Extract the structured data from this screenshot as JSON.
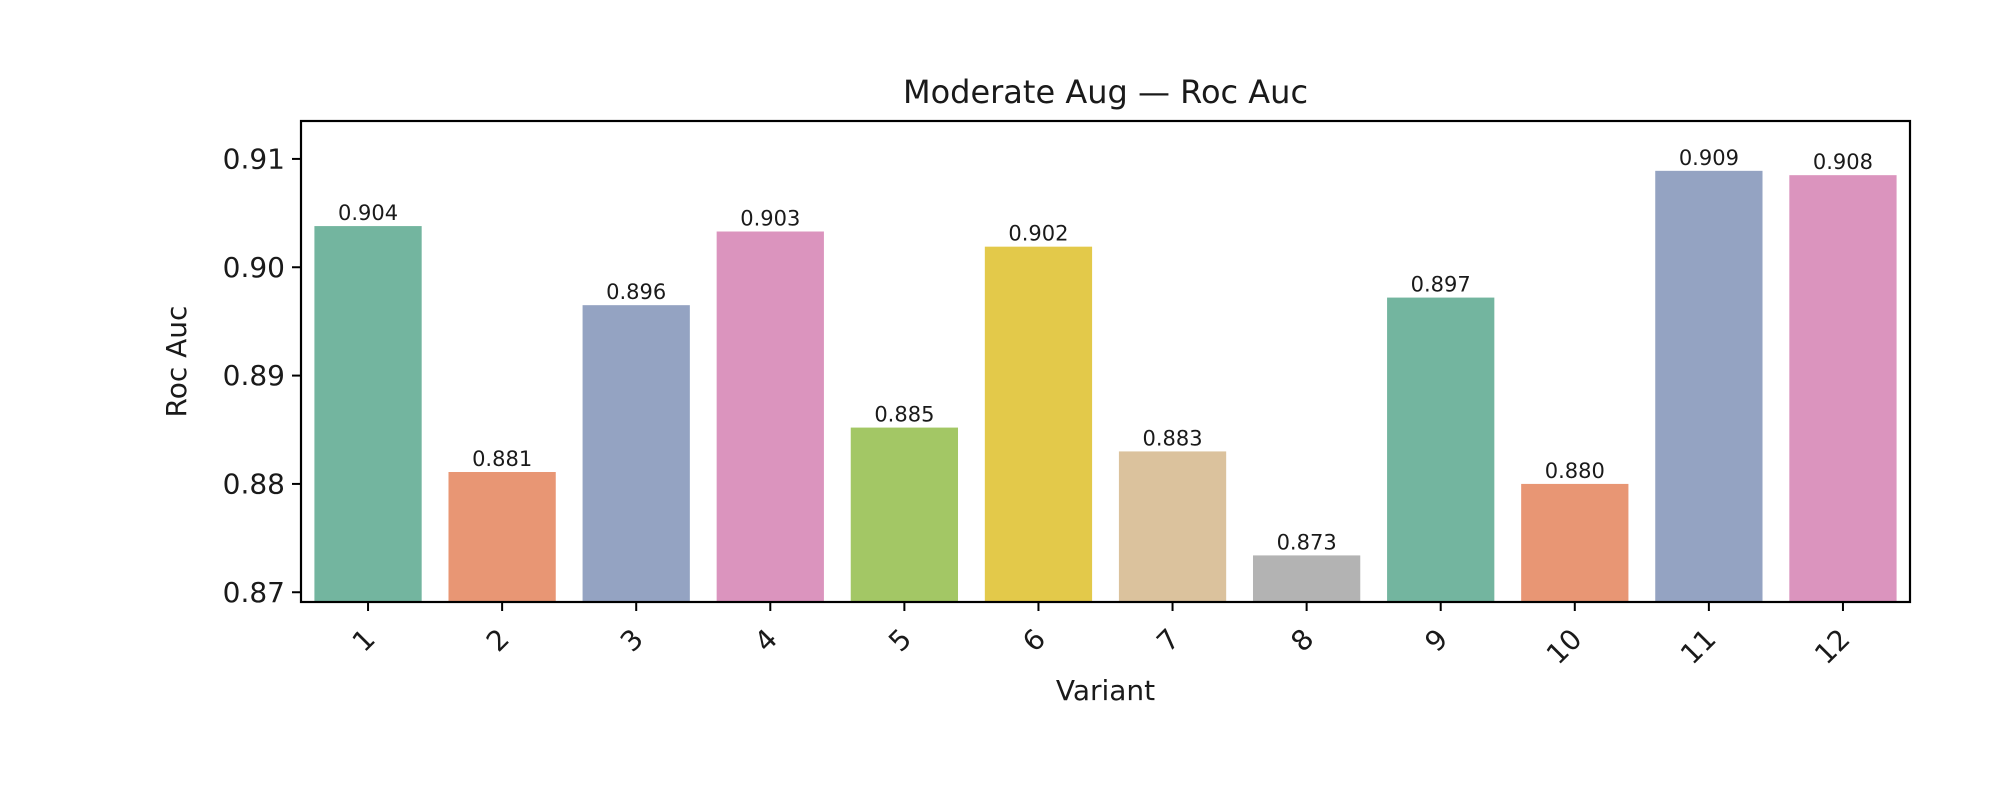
{
  "chart_data": {
    "type": "bar",
    "title": "Moderate Aug — Roc Auc",
    "xlabel": "Variant",
    "ylabel": "Roc Auc",
    "categories": [
      "1",
      "2",
      "3",
      "4",
      "5",
      "6",
      "7",
      "8",
      "9",
      "10",
      "11",
      "12"
    ],
    "values": [
      0.9038,
      0.8811,
      0.8965,
      0.9033,
      0.8852,
      0.9019,
      0.883,
      0.8734,
      0.8972,
      0.88,
      0.9089,
      0.9085
    ],
    "data_labels": [
      "0.904",
      "0.881",
      "0.896",
      "0.903",
      "0.885",
      "0.902",
      "0.883",
      "0.873",
      "0.897",
      "0.880",
      "0.909",
      "0.908"
    ],
    "colors": [
      "#73b59f",
      "#e89674",
      "#94a3c2",
      "#db94be",
      "#a3c765",
      "#e3c94a",
      "#dbc29d",
      "#b3b3b3",
      "#73b59f",
      "#e89674",
      "#94a3c2",
      "#db94be"
    ],
    "ylim": [
      0.8691,
      0.9135
    ],
    "yticks": [
      0.87,
      0.88,
      0.89,
      0.9,
      0.91
    ],
    "ytick_labels": [
      "0.87",
      "0.88",
      "0.89",
      "0.90",
      "0.91"
    ],
    "grid": false,
    "legend": "none"
  }
}
